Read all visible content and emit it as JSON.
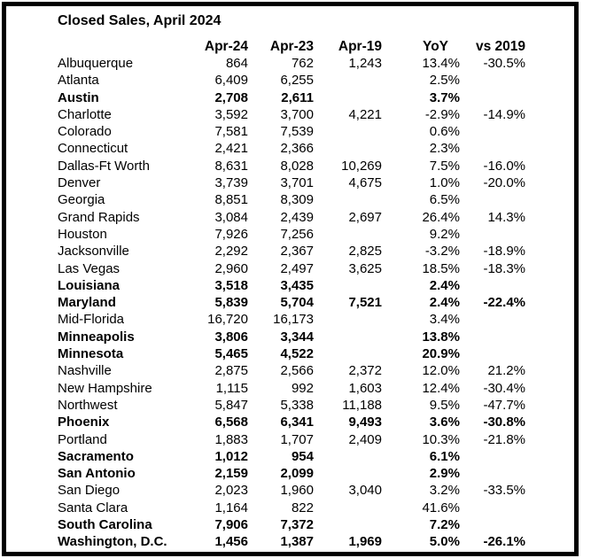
{
  "title": "Closed Sales, April 2024",
  "colors": {
    "text": "#000000",
    "background": "#ffffff",
    "border": "#000000"
  },
  "table": {
    "columns": [
      "",
      "Apr-24",
      "Apr-23",
      "Apr-19",
      "YoY",
      "vs 2019"
    ],
    "rows": [
      {
        "name": "Albuquerque",
        "bold": false,
        "values": [
          "864",
          "762",
          "1,243",
          "13.4%",
          "-30.5%"
        ]
      },
      {
        "name": "Atlanta",
        "bold": false,
        "values": [
          "6,409",
          "6,255",
          "",
          "2.5%",
          ""
        ]
      },
      {
        "name": "Austin",
        "bold": true,
        "values": [
          "2,708",
          "2,611",
          "",
          "3.7%",
          ""
        ]
      },
      {
        "name": "Charlotte",
        "bold": false,
        "values": [
          "3,592",
          "3,700",
          "4,221",
          "-2.9%",
          "-14.9%"
        ]
      },
      {
        "name": "Colorado",
        "bold": false,
        "values": [
          "7,581",
          "7,539",
          "",
          "0.6%",
          ""
        ]
      },
      {
        "name": "Connecticut",
        "bold": false,
        "values": [
          "2,421",
          "2,366",
          "",
          "2.3%",
          ""
        ]
      },
      {
        "name": "Dallas-Ft Worth",
        "bold": false,
        "values": [
          "8,631",
          "8,028",
          "10,269",
          "7.5%",
          "-16.0%"
        ]
      },
      {
        "name": "Denver",
        "bold": false,
        "values": [
          "3,739",
          "3,701",
          "4,675",
          "1.0%",
          "-20.0%"
        ]
      },
      {
        "name": "Georgia",
        "bold": false,
        "values": [
          "8,851",
          "8,309",
          "",
          "6.5%",
          ""
        ]
      },
      {
        "name": "Grand Rapids",
        "bold": false,
        "values": [
          "3,084",
          "2,439",
          "2,697",
          "26.4%",
          "14.3%"
        ]
      },
      {
        "name": "Houston",
        "bold": false,
        "values": [
          "7,926",
          "7,256",
          "",
          "9.2%",
          ""
        ]
      },
      {
        "name": "Jacksonville",
        "bold": false,
        "values": [
          "2,292",
          "2,367",
          "2,825",
          "-3.2%",
          "-18.9%"
        ]
      },
      {
        "name": "Las Vegas",
        "bold": false,
        "values": [
          "2,960",
          "2,497",
          "3,625",
          "18.5%",
          "-18.3%"
        ]
      },
      {
        "name": "Louisiana",
        "bold": true,
        "values": [
          "3,518",
          "3,435",
          "",
          "2.4%",
          ""
        ]
      },
      {
        "name": "Maryland",
        "bold": true,
        "values": [
          "5,839",
          "5,704",
          "7,521",
          "2.4%",
          "-22.4%"
        ]
      },
      {
        "name": "Mid-Florida",
        "bold": false,
        "values": [
          "16,720",
          "16,173",
          "",
          "3.4%",
          ""
        ]
      },
      {
        "name": "Minneapolis",
        "bold": true,
        "values": [
          "3,806",
          "3,344",
          "",
          "13.8%",
          ""
        ]
      },
      {
        "name": "Minnesota",
        "bold": true,
        "values": [
          "5,465",
          "4,522",
          "",
          "20.9%",
          ""
        ]
      },
      {
        "name": "Nashville",
        "bold": false,
        "values": [
          "2,875",
          "2,566",
          "2,372",
          "12.0%",
          "21.2%"
        ]
      },
      {
        "name": "New Hampshire",
        "bold": false,
        "values": [
          "1,115",
          "992",
          "1,603",
          "12.4%",
          "-30.4%"
        ]
      },
      {
        "name": "Northwest",
        "bold": false,
        "values": [
          "5,847",
          "5,338",
          "11,188",
          "9.5%",
          "-47.7%"
        ]
      },
      {
        "name": "Phoenix",
        "bold": true,
        "values": [
          "6,568",
          "6,341",
          "9,493",
          "3.6%",
          "-30.8%"
        ]
      },
      {
        "name": "Portland",
        "bold": false,
        "values": [
          "1,883",
          "1,707",
          "2,409",
          "10.3%",
          "-21.8%"
        ]
      },
      {
        "name": "Sacramento",
        "bold": true,
        "values": [
          "1,012",
          "954",
          "",
          "6.1%",
          ""
        ]
      },
      {
        "name": "San Antonio",
        "bold": true,
        "values": [
          "2,159",
          "2,099",
          "",
          "2.9%",
          ""
        ]
      },
      {
        "name": "San Diego",
        "bold": false,
        "values": [
          "2,023",
          "1,960",
          "3,040",
          "3.2%",
          "-33.5%"
        ]
      },
      {
        "name": "Santa Clara",
        "bold": false,
        "values": [
          "1,164",
          "822",
          "",
          "41.6%",
          ""
        ]
      },
      {
        "name": "South Carolina",
        "bold": true,
        "values": [
          "7,906",
          "7,372",
          "",
          "7.2%",
          ""
        ]
      },
      {
        "name": "Washington, D.C.",
        "bold": true,
        "values": [
          "1,456",
          "1,387",
          "1,969",
          "5.0%",
          "-26.1%"
        ]
      }
    ]
  }
}
